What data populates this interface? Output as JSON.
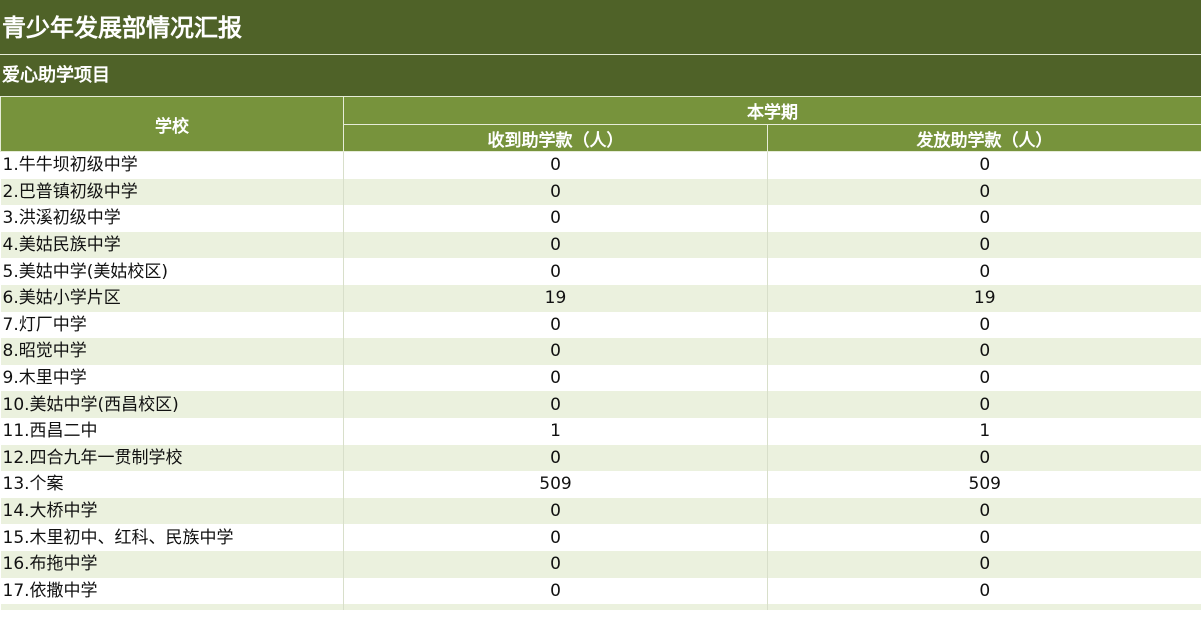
{
  "title": "青少年发展部情况汇报",
  "subtitle": "爱心助学项目",
  "colors": {
    "dark_header": "#4f6228",
    "header": "#77933c",
    "alt_row": "#ebf1de"
  },
  "table": {
    "col_school": "学校",
    "group": "本学期",
    "col_received": "收到助学款（人）",
    "col_issued": "发放助学款（人）",
    "rows": [
      {
        "school": "1.牛牛坝初级中学",
        "received": "0",
        "issued": "0"
      },
      {
        "school": "2.巴普镇初级中学",
        "received": "0",
        "issued": "0"
      },
      {
        "school": "3.洪溪初级中学",
        "received": "0",
        "issued": "0"
      },
      {
        "school": "4.美姑民族中学",
        "received": "0",
        "issued": "0"
      },
      {
        "school": "5.美姑中学(美姑校区)",
        "received": "0",
        "issued": "0"
      },
      {
        "school": "6.美姑小学片区",
        "received": "19",
        "issued": "19"
      },
      {
        "school": "7.灯厂中学",
        "received": "0",
        "issued": "0"
      },
      {
        "school": "8.昭觉中学",
        "received": "0",
        "issued": "0"
      },
      {
        "school": "9.木里中学",
        "received": "0",
        "issued": "0"
      },
      {
        "school": "10.美姑中学(西昌校区)",
        "received": "0",
        "issued": "0"
      },
      {
        "school": "11.西昌二中",
        "received": "1",
        "issued": "1"
      },
      {
        "school": "12.四合九年一贯制学校",
        "received": "0",
        "issued": "0"
      },
      {
        "school": "13.个案",
        "received": "509",
        "issued": "509"
      },
      {
        "school": "14.大桥中学",
        "received": "0",
        "issued": "0"
      },
      {
        "school": "15.木里初中、红科、民族中学",
        "received": "0",
        "issued": "0"
      },
      {
        "school": "16.布拖中学",
        "received": "0",
        "issued": "0"
      },
      {
        "school": "17.依撒中学",
        "received": "0",
        "issued": "0"
      }
    ]
  }
}
